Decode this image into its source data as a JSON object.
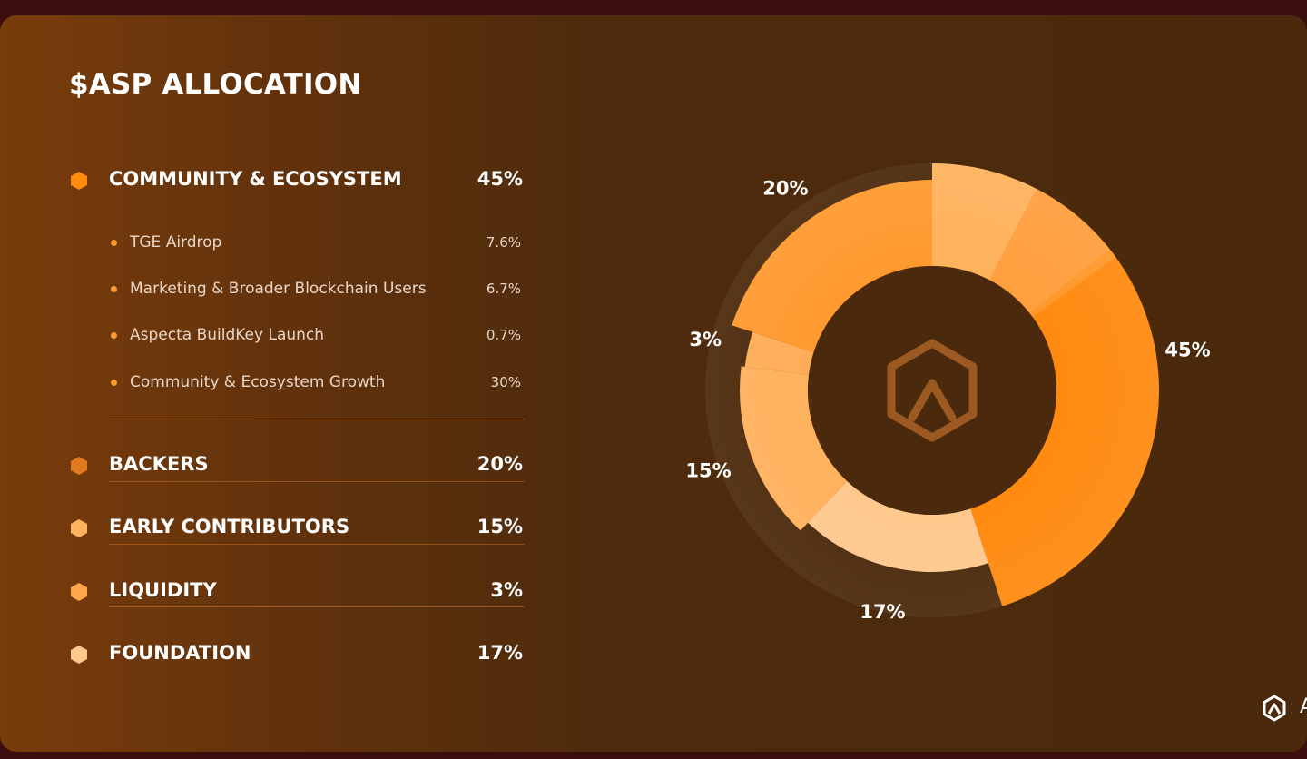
{
  "title": "$ASP ALLOCATION",
  "brand": {
    "name": "ASPECTA",
    "icon": "aspecta-logo-icon"
  },
  "colors": {
    "community": "#ff8a10",
    "backers": "#ff9a30",
    "early_contributors": "#ffb25e",
    "liquidity": "#ffad58",
    "foundation": "#ffc98e",
    "logo_center": "#9c5a22"
  },
  "allocation": {
    "community": {
      "label": "COMMUNITY & ECOSYSTEM",
      "value": "45%",
      "items": [
        {
          "label": "TGE Airdrop",
          "value": "7.6%"
        },
        {
          "label": "Marketing & Broader Blockchain Users",
          "value": "6.7%"
        },
        {
          "label": "Aspecta BuildKey Launch",
          "value": "0.7%"
        },
        {
          "label": "Community & Ecosystem Growth",
          "value": "30%"
        }
      ]
    },
    "backers": {
      "label": "BACKERS",
      "value": "20%"
    },
    "early_contributors": {
      "label": "EARLY CONTRIBUTORS",
      "value": "15%"
    },
    "liquidity": {
      "label": "LIQUIDITY",
      "value": "3%"
    },
    "foundation": {
      "label": "FOUNDATION",
      "value": "17%"
    }
  },
  "chart_data": {
    "type": "pie",
    "title": "$ASP ALLOCATION",
    "slices": [
      {
        "name": "COMMUNITY & ECOSYSTEM",
        "value": 45,
        "label": "45%",
        "color": "#ff8a10"
      },
      {
        "name": "FOUNDATION",
        "value": 17,
        "label": "17%",
        "color": "#ffc98e"
      },
      {
        "name": "EARLY CONTRIBUTORS",
        "value": 15,
        "label": "15%",
        "color": "#ffb25e"
      },
      {
        "name": "LIQUIDITY",
        "value": 3,
        "label": "3%",
        "color": "#ffad58"
      },
      {
        "name": "BACKERS",
        "value": 20,
        "label": "20%",
        "color": "#ff9a30"
      }
    ],
    "subdivisions": {
      "COMMUNITY & ECOSYSTEM": [
        {
          "name": "TGE Airdrop",
          "value": 7.6
        },
        {
          "name": "Marketing & Broader Blockchain Users",
          "value": 6.7
        },
        {
          "name": "Aspecta BuildKey Launch",
          "value": 0.7
        },
        {
          "name": "Community & Ecosystem Growth",
          "value": 30
        }
      ]
    },
    "donut": true,
    "legend": "left"
  }
}
